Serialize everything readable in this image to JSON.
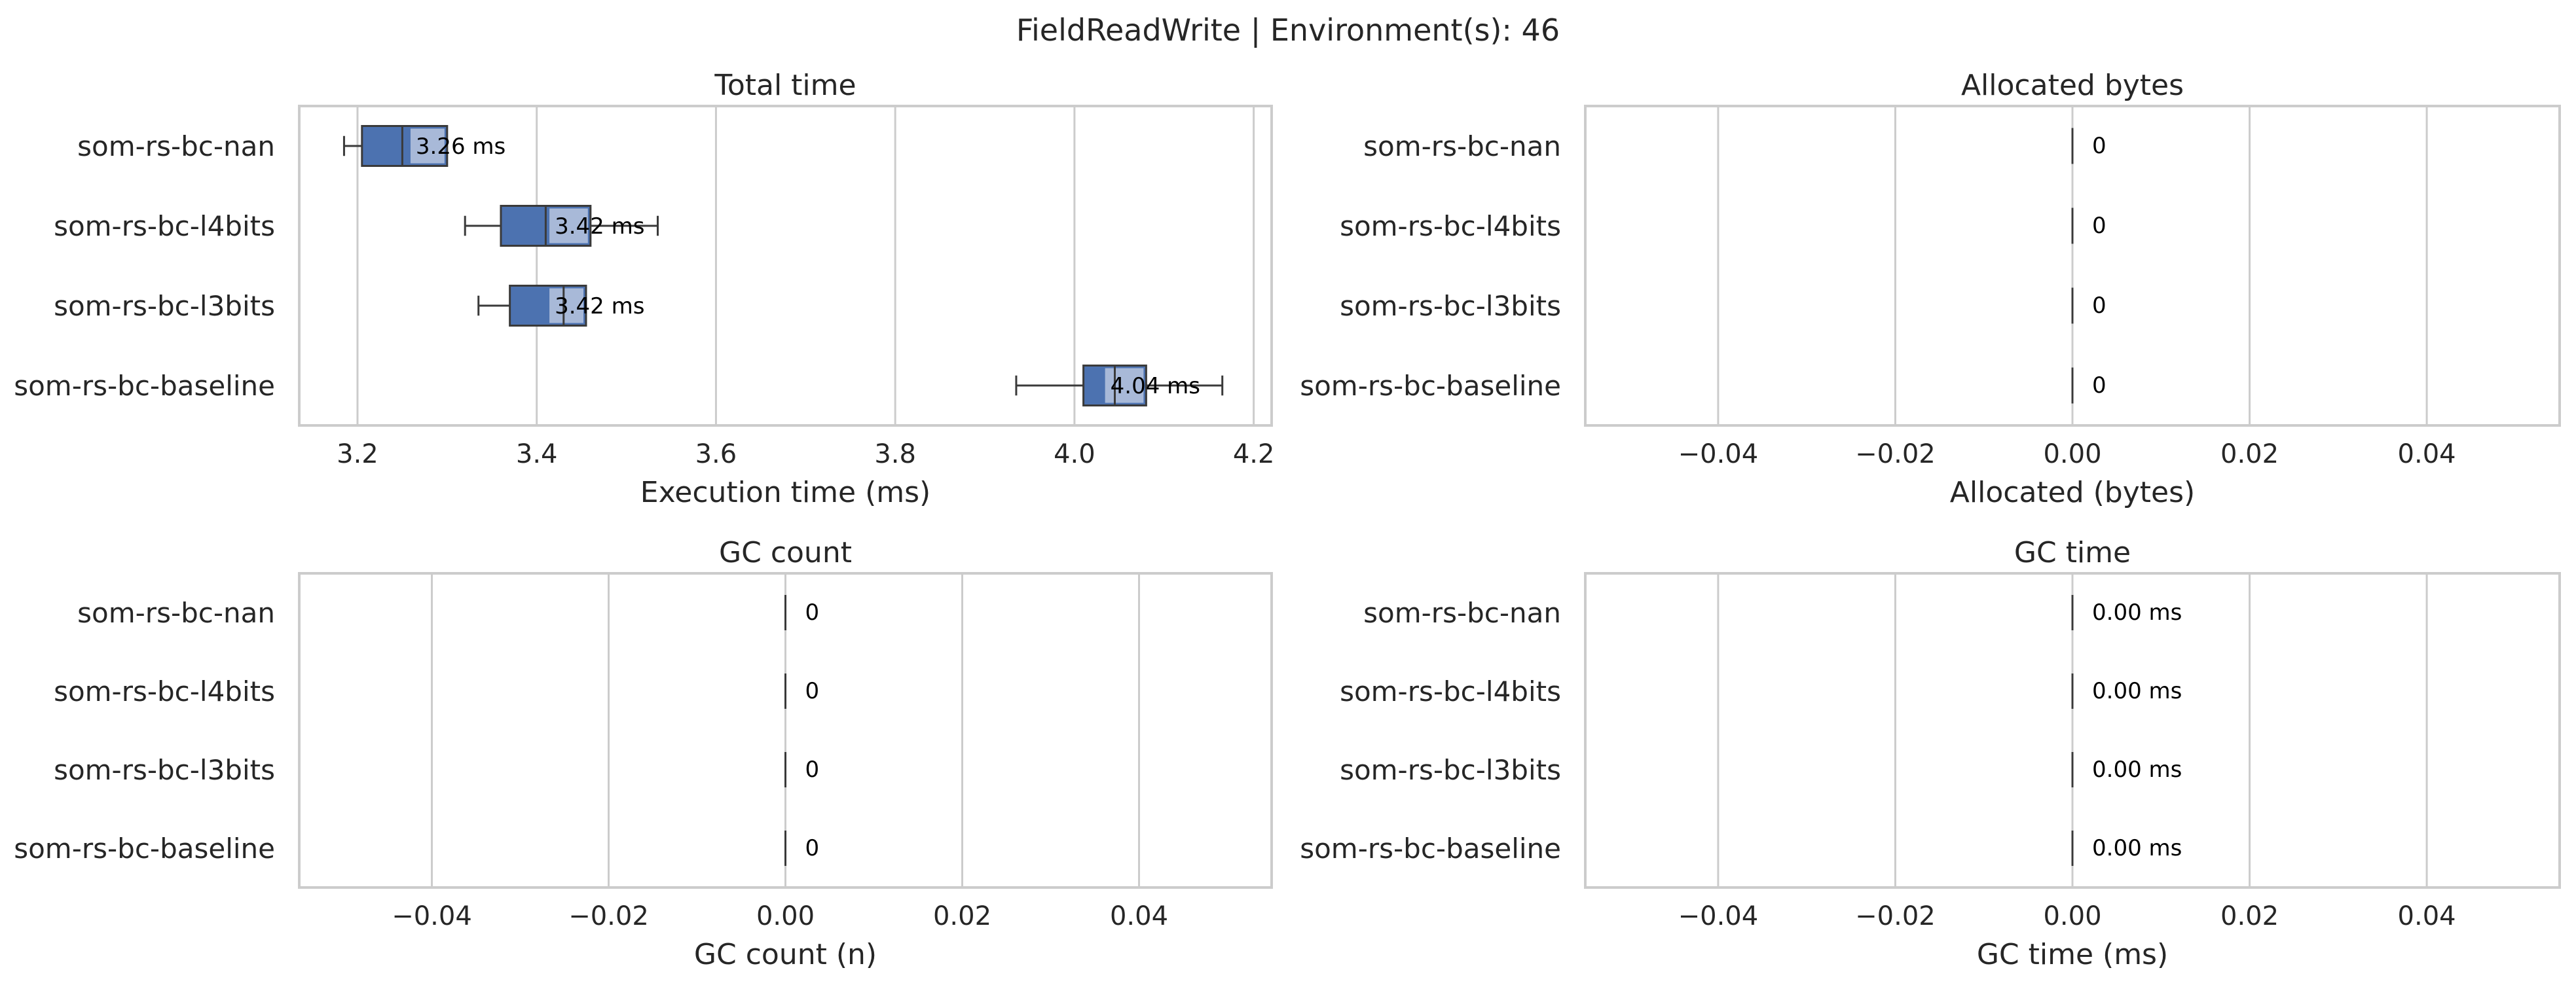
{
  "figure_title": "FieldReadWrite | Environment(s): 46",
  "colors": {
    "box": "#4c72b0",
    "box_light": "#b8c6df",
    "grid": "#cccccc",
    "frame": "#cccccc",
    "text": "#262626",
    "whisker": "#3a3a3a"
  },
  "chart_data": [
    {
      "type": "boxplot",
      "title": "Total time",
      "xlabel": "Execution time (ms)",
      "xlim": [
        3.135,
        4.22
      ],
      "xticks": [
        3.2,
        3.4,
        3.6,
        3.8,
        4.0,
        4.2
      ],
      "tick_labels": [
        "3.2",
        "3.4",
        "3.6",
        "3.8",
        "4.0",
        "4.2"
      ],
      "grid": true,
      "categories": [
        "som-rs-bc-nan",
        "som-rs-bc-l4bits",
        "som-rs-bc-l3bits",
        "som-rs-bc-baseline"
      ],
      "boxes": [
        {
          "whisker_low": 3.185,
          "q1": 3.205,
          "median": 3.25,
          "q3": 3.3,
          "mean": 3.265,
          "whisker_high": 3.3
        },
        {
          "whisker_low": 3.32,
          "q1": 3.36,
          "median": 3.41,
          "q3": 3.46,
          "mean": 3.42,
          "whisker_high": 3.535
        },
        {
          "whisker_low": 3.335,
          "q1": 3.37,
          "median": 3.43,
          "q3": 3.455,
          "mean": 3.42,
          "whisker_high": 3.455
        },
        {
          "whisker_low": 3.935,
          "q1": 4.01,
          "median": 4.045,
          "q3": 4.08,
          "mean": 4.04,
          "whisker_high": 4.165
        }
      ],
      "value_labels": [
        "3.26 ms",
        "3.42 ms",
        "3.42 ms",
        "4.04 ms"
      ]
    },
    {
      "type": "boxplot",
      "title": "Allocated bytes",
      "xlabel": "Allocated (bytes)",
      "xlim": [
        -0.055,
        0.055
      ],
      "xticks": [
        -0.04,
        -0.02,
        0.0,
        0.02,
        0.04
      ],
      "tick_labels": [
        "−0.04",
        "−0.02",
        "0.00",
        "0.02",
        "0.04"
      ],
      "grid": true,
      "categories": [
        "som-rs-bc-nan",
        "som-rs-bc-l4bits",
        "som-rs-bc-l3bits",
        "som-rs-bc-baseline"
      ],
      "values": [
        0,
        0,
        0,
        0
      ],
      "value_labels": [
        "0",
        "0",
        "0",
        "0"
      ]
    },
    {
      "type": "boxplot",
      "title": "GC count",
      "xlabel": "GC count (n)",
      "xlim": [
        -0.055,
        0.055
      ],
      "xticks": [
        -0.04,
        -0.02,
        0.0,
        0.02,
        0.04
      ],
      "tick_labels": [
        "−0.04",
        "−0.02",
        "0.00",
        "0.02",
        "0.04"
      ],
      "grid": true,
      "categories": [
        "som-rs-bc-nan",
        "som-rs-bc-l4bits",
        "som-rs-bc-l3bits",
        "som-rs-bc-baseline"
      ],
      "values": [
        0,
        0,
        0,
        0
      ],
      "value_labels": [
        "0",
        "0",
        "0",
        "0"
      ]
    },
    {
      "type": "boxplot",
      "title": "GC time",
      "xlabel": "GC time (ms)",
      "xlim": [
        -0.055,
        0.055
      ],
      "xticks": [
        -0.04,
        -0.02,
        0.0,
        0.02,
        0.04
      ],
      "tick_labels": [
        "−0.04",
        "−0.02",
        "0.00",
        "0.02",
        "0.04"
      ],
      "grid": true,
      "categories": [
        "som-rs-bc-nan",
        "som-rs-bc-l4bits",
        "som-rs-bc-l3bits",
        "som-rs-bc-baseline"
      ],
      "values": [
        0,
        0,
        0,
        0
      ],
      "value_labels": [
        "0.00 ms",
        "0.00 ms",
        "0.00 ms",
        "0.00 ms"
      ]
    }
  ]
}
